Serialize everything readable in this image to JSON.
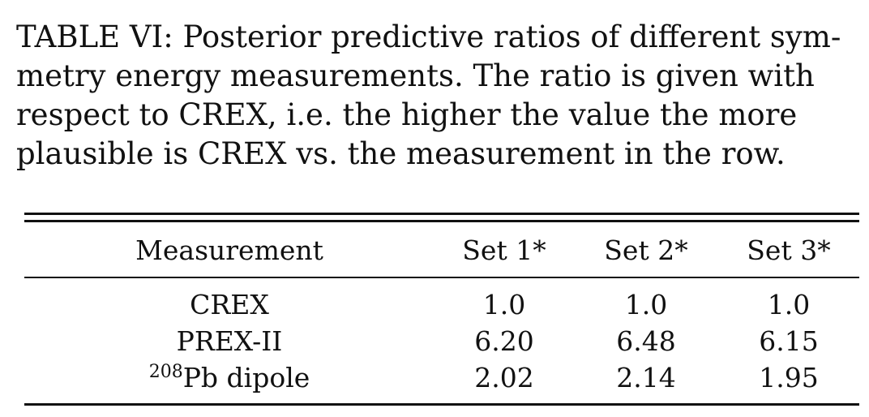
{
  "caption": "TABLE VI: Posterior predictive ratios of different sym-metry energy measurements. The ratio is given with respect to CREX, i.e. the higher the value the more plausible is CREX vs. the measurement in the row.",
  "caption_lines": [
    "TABLE VI: Posterior predictive ratios of different sym-",
    "metry energy measurements. The ratio is given with",
    "respect to CREX, i.e. the higher the value the more",
    "plausible is CREX vs. the measurement in the row."
  ],
  "table": {
    "headers": [
      "Measurement",
      "Set 1*",
      "Set 2*",
      "Set 3*"
    ],
    "rows": [
      {
        "sup": "",
        "measurement": "CREX",
        "values": [
          "1.0",
          "1.0",
          "1.0"
        ]
      },
      {
        "sup": "",
        "measurement": "PREX-II",
        "values": [
          "6.20",
          "6.48",
          "6.15"
        ]
      },
      {
        "sup": "208",
        "measurement": "Pb dipole",
        "values": [
          "2.02",
          "2.14",
          "1.95"
        ]
      }
    ]
  }
}
